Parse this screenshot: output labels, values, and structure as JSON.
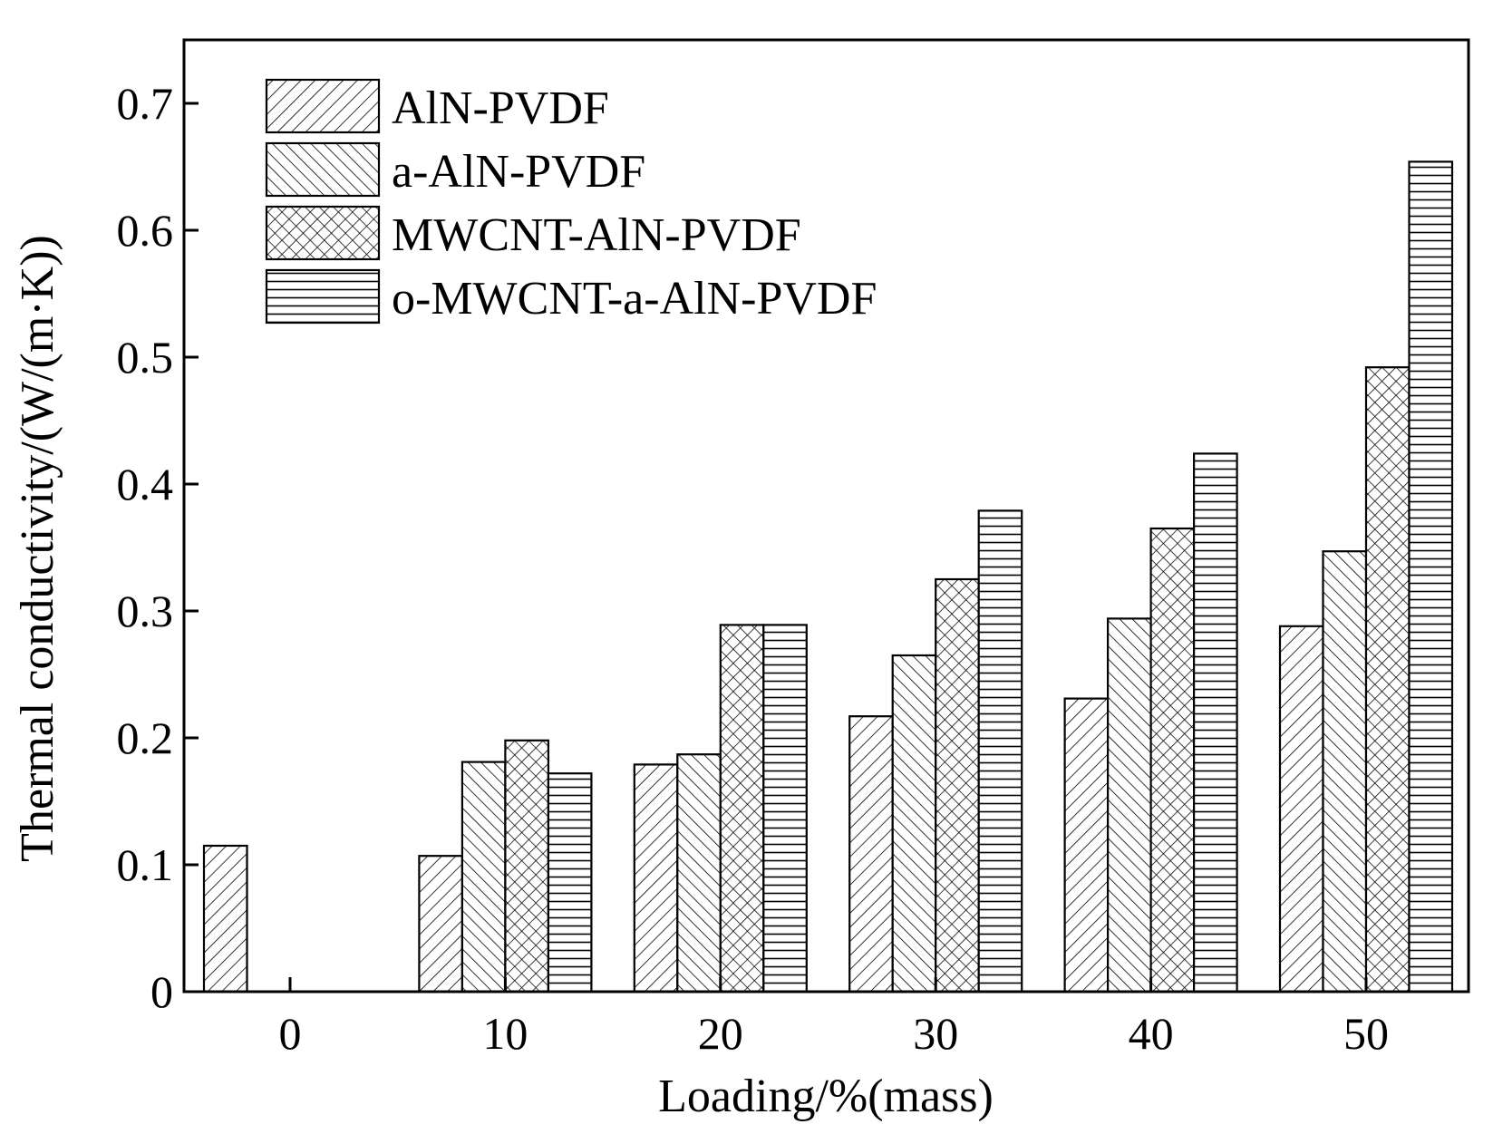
{
  "chart_data": {
    "type": "bar",
    "categories": [
      "0",
      "10",
      "20",
      "30",
      "40",
      "50"
    ],
    "series": [
      {
        "name": "AlN-PVDF",
        "pattern": "diag-right",
        "values": [
          0.115,
          0.107,
          0.179,
          0.217,
          0.231,
          0.288
        ]
      },
      {
        "name": "a-AlN-PVDF",
        "pattern": "diag-left",
        "values": [
          null,
          0.181,
          0.187,
          0.265,
          0.294,
          0.347
        ]
      },
      {
        "name": "MWCNT-AlN-PVDF",
        "pattern": "cross",
        "values": [
          null,
          0.198,
          0.289,
          0.325,
          0.365,
          0.492
        ]
      },
      {
        "name": "o-MWCNT-a-AlN-PVDF",
        "pattern": "horizontal",
        "values": [
          null,
          0.172,
          0.289,
          0.379,
          0.424,
          0.654
        ]
      }
    ],
    "title": "",
    "xlabel": "Loading/%(mass)",
    "ylabel": "Thermal conductivity/(W/(m·K))",
    "ylim": [
      0,
      0.75
    ],
    "yticks": [
      "0",
      "0.1",
      "0.2",
      "0.3",
      "0.4",
      "0.5",
      "0.6",
      "0.7"
    ],
    "legend": "top-left",
    "grid": false,
    "colors": {
      "bar_stroke": "#000000",
      "bar_fill": "#ffffff",
      "pattern": "#000000"
    }
  }
}
